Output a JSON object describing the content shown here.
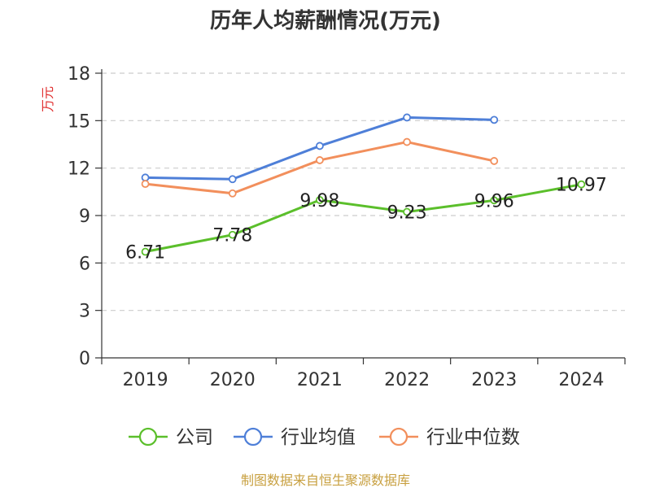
{
  "chart_data": {
    "type": "line",
    "title": "历年人均薪酬情况(万元)",
    "xlabel": "",
    "ylabel": "万元",
    "categories": [
      "2019",
      "2020",
      "2021",
      "2022",
      "2023",
      "2024"
    ],
    "ylim": [
      0,
      18
    ],
    "yticks": [
      "0",
      "3",
      "6",
      "9",
      "12",
      "15",
      "18"
    ],
    "grid": true,
    "legend_position": "bottom",
    "series": [
      {
        "name": "公司",
        "color": "#5bbf2b",
        "values": [
          6.71,
          7.78,
          9.98,
          9.23,
          9.96,
          10.97
        ],
        "labels": [
          "6.71",
          "7.78",
          "9.98",
          "9.23",
          "9.96",
          "10.97"
        ]
      },
      {
        "name": "行业均值",
        "color": "#4e7fd8",
        "values": [
          11.4,
          11.3,
          13.4,
          15.2,
          15.05,
          null
        ]
      },
      {
        "name": "行业中位数",
        "color": "#f28f5c",
        "values": [
          11.0,
          10.4,
          12.5,
          13.65,
          12.45,
          null
        ]
      }
    ]
  },
  "colors": {
    "axis": "#333333",
    "grid": "#cccccc",
    "ylabel": "#e03030",
    "source": "#c8a040"
  },
  "source": "制图数据来自恒生聚源数据库"
}
